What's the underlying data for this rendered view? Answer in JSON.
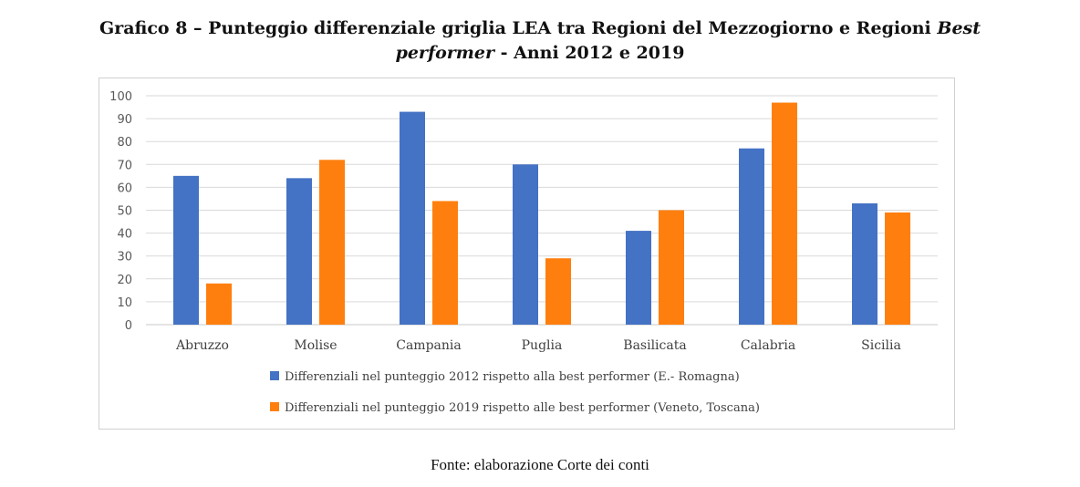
{
  "title": {
    "part1": "Grafico 8 – Punteggio differenziale griglia LEA tra Regioni del Mezzogiorno e Regioni ",
    "italic1": "Best",
    "italic2": "performer",
    "part2": " - Anni 2012 e 2019"
  },
  "source": "Fonte: elaborazione Corte dei conti",
  "chart_data": {
    "type": "bar",
    "title": "Grafico 8 – Punteggio differenziale griglia LEA tra Regioni del Mezzogiorno e Regioni Best performer - Anni 2012 e 2019",
    "xlabel": "",
    "ylabel": "",
    "ylim": [
      0,
      100
    ],
    "yticks": [
      0,
      10,
      20,
      30,
      40,
      50,
      60,
      70,
      80,
      90,
      100
    ],
    "grid": true,
    "legend_position": "bottom",
    "categories": [
      "Abruzzo",
      "Molise",
      "Campania",
      "Puglia",
      "Basilicata",
      "Calabria",
      "Sicilia"
    ],
    "series": [
      {
        "name": "Differenziali nel punteggio 2012 rispetto alla best performer (E.- Romagna)",
        "color": "#4472C4",
        "values": [
          65,
          64,
          93,
          70,
          41,
          77,
          53
        ]
      },
      {
        "name": "Differenziali nel punteggio 2019 rispetto alle best performer (Veneto, Toscana)",
        "color": "#FF7F0E",
        "values": [
          18,
          72,
          54,
          29,
          50,
          97,
          49
        ]
      }
    ]
  }
}
